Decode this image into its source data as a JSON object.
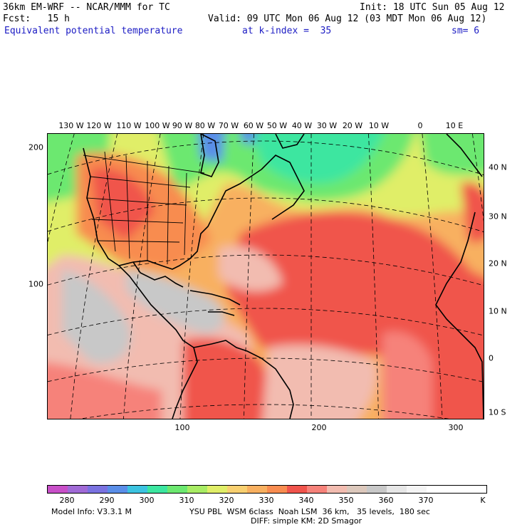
{
  "header": {
    "model": "36km EM-WRF -- NCAR/MMM for TC",
    "init": "Init: 18 UTC Sun 05 Aug 12",
    "fcst": "Fcst:   15 h",
    "valid": "Valid: 09 UTC Mon 06 Aug 12 (03 MDT Mon 06 Aug 12)",
    "field": "Equivalent potential temperature",
    "level": "at k-index =  35",
    "smoothing": "sm= 6"
  },
  "map": {
    "lon_labels": [
      "130 W",
      "120 W",
      "110 W",
      "100 W",
      "90 W",
      "80 W",
      "70 W",
      "60 W",
      "50 W",
      "40 W",
      "30 W",
      "20 W",
      "10 W",
      "0",
      "10 E"
    ],
    "lat_labels": [
      "40 N",
      "30 N",
      "20 N",
      "10 N",
      "0",
      "10 S"
    ],
    "grid_y_labels": [
      "200",
      "100"
    ],
    "grid_x_labels": [
      "100",
      "200",
      "300"
    ]
  },
  "colorbar": {
    "colors": [
      "#c84fc8",
      "#a06ad6",
      "#7a72e0",
      "#5a8ee8",
      "#3cc3e0",
      "#3ce6a0",
      "#6ce870",
      "#a8ec64",
      "#e0ee68",
      "#f8d070",
      "#f8b060",
      "#f88c50",
      "#f0544c",
      "#f6827a",
      "#f2bcb0",
      "#dcc8bc",
      "#c8c8c8",
      "#e6e6e6",
      "#f4f4f4",
      "#ffffff",
      "#ffffff",
      "#ffffff"
    ],
    "labels": [
      "280",
      "290",
      "300",
      "310",
      "320",
      "330",
      "340",
      "350",
      "360",
      "370"
    ],
    "unit": "K"
  },
  "footer": {
    "model_info": "Model Info: V3.3.1 M",
    "physics1": "YSU PBL  WSM 6class  Noah LSM  36 km,   35 levels,  180 sec",
    "physics2": "DIFF: simple KM: 2D Smagor"
  }
}
